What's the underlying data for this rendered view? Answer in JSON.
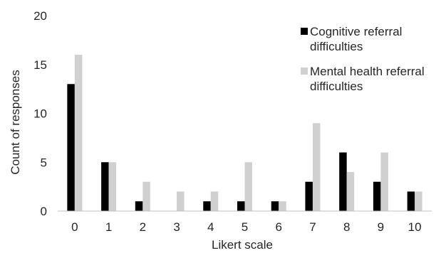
{
  "chart_data": {
    "type": "bar",
    "title": "",
    "xlabel": "Likert scale",
    "ylabel": "Count of responses",
    "categories": [
      "0",
      "1",
      "2",
      "3",
      "4",
      "5",
      "6",
      "7",
      "8",
      "9",
      "10"
    ],
    "ylim": [
      0,
      20
    ],
    "yticks": [
      "0",
      "5",
      "10",
      "15",
      "20"
    ],
    "grid": false,
    "legend_position": "top-right",
    "series": [
      {
        "name_lines": [
          "Cognitive referral",
          "difficulties"
        ],
        "color": "#000000",
        "values": [
          13,
          5,
          1,
          0,
          1,
          1,
          1,
          3,
          6,
          3,
          2
        ]
      },
      {
        "name_lines": [
          "Mental health referral",
          "difficulties"
        ],
        "color": "#d0d0d0",
        "values": [
          16,
          5,
          3,
          2,
          2,
          5,
          1,
          9,
          4,
          6,
          2
        ]
      }
    ]
  }
}
